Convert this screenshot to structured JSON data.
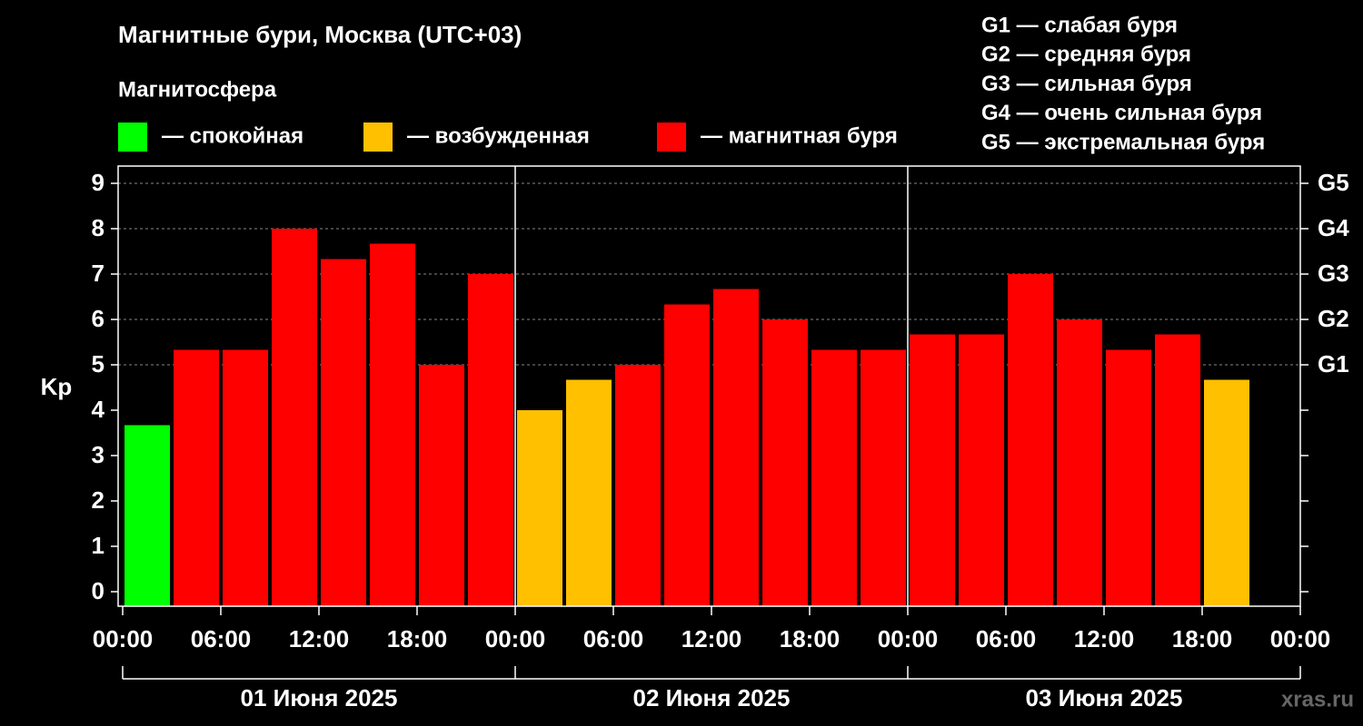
{
  "chart_data": {
    "type": "bar",
    "title": "Магнитные бури, Москва (UTC+03)",
    "subtitle": "Магнитосфера",
    "y_label": "Kp",
    "legend": [
      {
        "label": "— спокойная",
        "color": "#00ff00"
      },
      {
        "label": "— возбужденная",
        "color": "#ffc000"
      },
      {
        "label": "— магнитная буря",
        "color": "#ff0000"
      }
    ],
    "g_legend": [
      "G1 — слабая буря",
      "G2 — средняя буря",
      "G3 — сильная буря",
      "G4 — очень сильная буря",
      "G5 — экстремальная буря"
    ],
    "x": [
      0,
      3,
      6,
      9,
      12,
      15,
      18,
      21,
      24,
      27,
      30,
      33,
      36,
      39,
      42,
      45,
      48,
      51,
      54,
      57,
      60,
      63,
      66,
      69
    ],
    "values": [
      3.67,
      5.33,
      5.33,
      8,
      7.33,
      7.67,
      5,
      7,
      4,
      4.67,
      5,
      6.33,
      6.67,
      6,
      5.33,
      5.33,
      5.67,
      5.67,
      7,
      6,
      5.33,
      5.67,
      4.67,
      null
    ],
    "colors": [
      "#00ff00",
      "#ff0000",
      "#ff0000",
      "#ff0000",
      "#ff0000",
      "#ff0000",
      "#ff0000",
      "#ff0000",
      "#ffc000",
      "#ffc000",
      "#ff0000",
      "#ff0000",
      "#ff0000",
      "#ff0000",
      "#ff0000",
      "#ff0000",
      "#ff0000",
      "#ff0000",
      "#ff0000",
      "#ff0000",
      "#ff0000",
      "#ff0000",
      "#ffc000",
      null
    ],
    "xlim": [
      0,
      72
    ],
    "xticks": [
      {
        "value": 0,
        "label": "00:00"
      },
      {
        "value": 6,
        "label": "06:00"
      },
      {
        "value": 12,
        "label": "12:00"
      },
      {
        "value": 18,
        "label": "18:00"
      },
      {
        "value": 24,
        "label": "00:00"
      },
      {
        "value": 30,
        "label": "06:00"
      },
      {
        "value": 36,
        "label": "12:00"
      },
      {
        "value": 42,
        "label": "18:00"
      },
      {
        "value": 48,
        "label": "00:00"
      },
      {
        "value": 54,
        "label": "06:00"
      },
      {
        "value": 60,
        "label": "12:00"
      },
      {
        "value": 66,
        "label": "18:00"
      },
      {
        "value": 72,
        "label": "00:00"
      }
    ],
    "ylim": [
      -0.32,
      9.38
    ],
    "yticks": [
      0,
      1,
      2,
      3,
      4,
      5,
      6,
      7,
      8,
      9
    ],
    "y2lim": [
      -0.32,
      9.38
    ],
    "y2ticks": [
      {
        "value": 5,
        "label": "G1"
      },
      {
        "value": 6,
        "label": "G2"
      },
      {
        "value": 7,
        "label": "G3"
      },
      {
        "value": 8,
        "label": "G4"
      },
      {
        "value": 9,
        "label": "G5"
      }
    ],
    "grid": true,
    "days": [
      "01 Июня 2025",
      "02 Июня 2025",
      "03 Июня 2025"
    ],
    "watermark": "xras.ru"
  }
}
